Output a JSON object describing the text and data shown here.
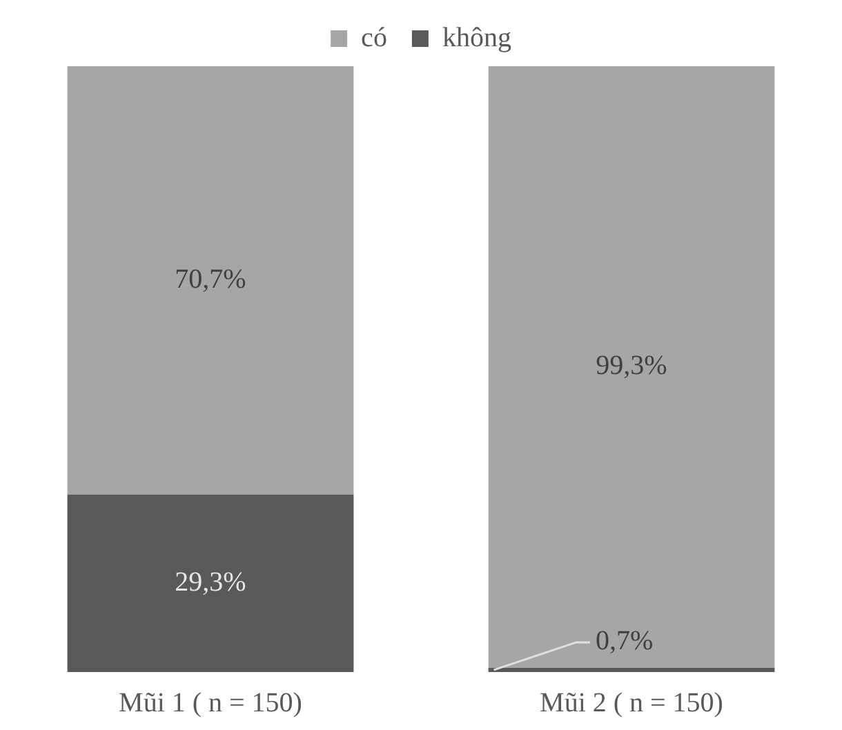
{
  "chart_data": {
    "type": "bar",
    "stacked": true,
    "categories": [
      "Mũi 1 ( n = 150)",
      "Mũi 2 ( n = 150)"
    ],
    "series": [
      {
        "name": "không",
        "color": "#595959",
        "values": [
          29.3,
          0.7
        ],
        "value_labels": [
          "29,3%",
          "0,7%"
        ]
      },
      {
        "name": "có",
        "color": "#a6a6a6",
        "values": [
          70.7,
          99.3
        ],
        "value_labels": [
          "70,7%",
          "99,3%"
        ]
      }
    ],
    "ylim": [
      0,
      100
    ],
    "tick_labels": "x",
    "grid": false,
    "legend": "top"
  }
}
